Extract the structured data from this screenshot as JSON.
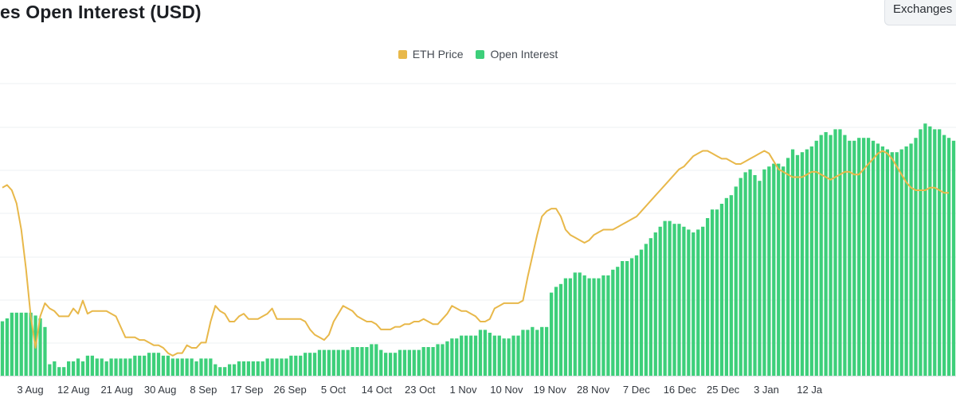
{
  "title": "es Open Interest (USD)",
  "exchanges_button": "Exchanges",
  "colors": {
    "price": "#E8B84A",
    "oi": "#3DCF7A",
    "grid": "#EEF0F3",
    "tick": "#33383F"
  },
  "chart_data": {
    "type": "bar",
    "title": "es Open Interest (USD)",
    "legend": [
      {
        "name": "ETH Price",
        "color": "#E8B84A"
      },
      {
        "name": "Open Interest",
        "color": "#3DCF7A"
      }
    ],
    "legend_position": "top-center",
    "x_ticks": [
      "3 Aug",
      "12 Aug",
      "21 Aug",
      "30 Aug",
      "8 Sep",
      "17 Sep",
      "26 Sep",
      "5 Oct",
      "14 Oct",
      "23 Oct",
      "1 Nov",
      "10 Nov",
      "19 Nov",
      "28 Nov",
      "7 Dec",
      "16 Dec",
      "25 Dec",
      "3 Jan",
      "12 Ja"
    ],
    "y_axis": "hidden",
    "grid": "horizontal",
    "series": [
      {
        "name": "Open Interest",
        "chart": "bar",
        "values": [
          19,
          20,
          22,
          22,
          22,
          22,
          22,
          21,
          20,
          17,
          4,
          5,
          3,
          3,
          5,
          5,
          6,
          5,
          7,
          7,
          6,
          6,
          5,
          6,
          6,
          6,
          6,
          6,
          7,
          7,
          7,
          8,
          8,
          8,
          7,
          7,
          6,
          6,
          6,
          6,
          6,
          5,
          6,
          6,
          6,
          4,
          3,
          3,
          4,
          4,
          5,
          5,
          5,
          5,
          5,
          5,
          6,
          6,
          6,
          6,
          6,
          7,
          7,
          7,
          8,
          8,
          8,
          9,
          9,
          9,
          9,
          9,
          9,
          9,
          10,
          10,
          10,
          10,
          11,
          11,
          9,
          8,
          8,
          8,
          9,
          9,
          9,
          9,
          9,
          10,
          10,
          10,
          11,
          11,
          12,
          13,
          13,
          14,
          14,
          14,
          14,
          16,
          16,
          15,
          14,
          14,
          13,
          13,
          14,
          14,
          16,
          16,
          17,
          16,
          17,
          17,
          29,
          31,
          32,
          34,
          34,
          36,
          36,
          35,
          34,
          34,
          34,
          35,
          35,
          37,
          38,
          40,
          40,
          41,
          42,
          44,
          46,
          48,
          50,
          52,
          54,
          54,
          53,
          53,
          52,
          51,
          50,
          51,
          52,
          55,
          58,
          58,
          60,
          62,
          63,
          66,
          69,
          71,
          72,
          70,
          68,
          72,
          73,
          74,
          74,
          73,
          76,
          79,
          77,
          78,
          79,
          80,
          82,
          84,
          85,
          84,
          86,
          86,
          84,
          82,
          82,
          83,
          83,
          83,
          82,
          81,
          80,
          79,
          78,
          78,
          79,
          80,
          81,
          83,
          86,
          88,
          87,
          86,
          86,
          84,
          83,
          82
        ]
      },
      {
        "name": "ETH Price",
        "chart": "line",
        "values": [
          71,
          72,
          70,
          65,
          55,
          40,
          22,
          10,
          22,
          27,
          25,
          24,
          22,
          22,
          22,
          25,
          23,
          28,
          23,
          24,
          24,
          24,
          24,
          23,
          22,
          18,
          14,
          14,
          14,
          13,
          13,
          12,
          11,
          11,
          10,
          8,
          7,
          8,
          8,
          11,
          10,
          10,
          12,
          12,
          20,
          26,
          24,
          23,
          20,
          20,
          22,
          23,
          21,
          21,
          21,
          22,
          23,
          25,
          21,
          21,
          21,
          21,
          21,
          21,
          20,
          17,
          15,
          14,
          13,
          15,
          20,
          23,
          26,
          25,
          24,
          22,
          21,
          20,
          20,
          19,
          17,
          17,
          17,
          18,
          18,
          19,
          19,
          20,
          20,
          21,
          20,
          19,
          19,
          21,
          23,
          26,
          25,
          24,
          24,
          23,
          22,
          20,
          20,
          21,
          25,
          26,
          27,
          27,
          27,
          27,
          28,
          37,
          45,
          53,
          60,
          62,
          63,
          63,
          60,
          55,
          53,
          52,
          51,
          50,
          51,
          53,
          54,
          55,
          55,
          55,
          56,
          57,
          58,
          59,
          60,
          62,
          64,
          66,
          68,
          70,
          72,
          74,
          76,
          78,
          79,
          81,
          83,
          84,
          85,
          85,
          84,
          83,
          82,
          82,
          81,
          80,
          80,
          81,
          82,
          83,
          84,
          85,
          84,
          81,
          78,
          77,
          76,
          75,
          75,
          75,
          76,
          77,
          77,
          76,
          75,
          74,
          75,
          76,
          77,
          77,
          76,
          76,
          78,
          80,
          82,
          84,
          85,
          84,
          82,
          79,
          76,
          73,
          71,
          70,
          70,
          70,
          71,
          71,
          70,
          69,
          69
        ]
      }
    ]
  }
}
